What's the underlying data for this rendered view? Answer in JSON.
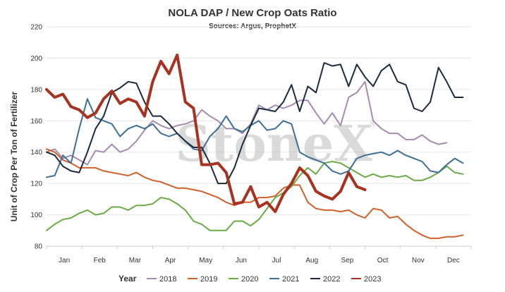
{
  "chart_data": {
    "type": "line",
    "title": "NOLA DAP / New Crop Oats Ratio",
    "subtitle": "Sources: Argus, ProphetX",
    "ylabel": "Unit of Crop Per Ton of Fertilizer",
    "xlabel": "",
    "ylim": [
      80,
      220
    ],
    "yticks": [
      80,
      100,
      120,
      140,
      160,
      180,
      200,
      220
    ],
    "xlim": [
      0,
      52
    ],
    "months": [
      "Jan",
      "Feb",
      "Mar",
      "Apr",
      "May",
      "Jun",
      "Jul",
      "Aug",
      "Sep",
      "Oct",
      "Nov",
      "Dec"
    ],
    "grid": true,
    "legend": {
      "title": "Year",
      "position": "bottom"
    },
    "watermark": "StoneX",
    "watermark_mark": "®",
    "series": [
      {
        "name": "2018",
        "color": "#a58bb0",
        "x": [
          0,
          1,
          2,
          3,
          4,
          5,
          6,
          7,
          8,
          9,
          10,
          11,
          12,
          13,
          14,
          15,
          16,
          17,
          18,
          19,
          20,
          21,
          22,
          23,
          24,
          25,
          26,
          27,
          28,
          29,
          30,
          31,
          32,
          33,
          34,
          35,
          36,
          37,
          38,
          39,
          40,
          41,
          42,
          43,
          44,
          45,
          46,
          47,
          48,
          49
        ],
        "values": [
          140,
          142,
          136,
          138,
          135,
          132,
          141,
          140,
          145,
          140,
          142,
          147,
          154,
          160,
          157,
          155,
          157,
          158,
          160,
          167,
          163,
          160,
          155,
          155,
          152,
          158,
          170,
          167,
          170,
          168,
          170,
          173,
          173,
          165,
          158,
          165,
          157,
          175,
          178,
          185,
          160,
          155,
          152,
          152,
          148,
          148,
          151,
          147,
          145,
          146
        ]
      },
      {
        "name": "2019",
        "color": "#d2602a",
        "x": [
          0,
          1,
          2,
          3,
          4,
          5,
          6,
          7,
          8,
          9,
          10,
          11,
          12,
          13,
          14,
          15,
          16,
          17,
          18,
          19,
          20,
          21,
          22,
          23,
          24,
          25,
          26,
          27,
          28,
          29,
          30,
          31,
          32,
          33,
          34,
          35,
          36,
          37,
          38,
          39,
          40,
          41,
          42,
          43,
          44,
          45,
          46,
          47,
          48,
          49,
          50,
          51
        ],
        "values": [
          142,
          140,
          135,
          133,
          130,
          130,
          130,
          128,
          127,
          126,
          125,
          127,
          124,
          122,
          121,
          119,
          117,
          117,
          116,
          115,
          113,
          111,
          108,
          106,
          108,
          108,
          111,
          111,
          112,
          117,
          119,
          119,
          108,
          104,
          103,
          103,
          102,
          103,
          100,
          98,
          104,
          103,
          98,
          99,
          94,
          90,
          87,
          85,
          85,
          86,
          86,
          87
        ]
      },
      {
        "name": "2020",
        "color": "#6aab45",
        "x": [
          0,
          1,
          2,
          3,
          4,
          5,
          6,
          7,
          8,
          9,
          10,
          11,
          12,
          13,
          14,
          15,
          16,
          17,
          18,
          19,
          20,
          21,
          22,
          23,
          24,
          25,
          26,
          27,
          28,
          29,
          30,
          31,
          32,
          33,
          34,
          35,
          36,
          37,
          38,
          39,
          40,
          41,
          42,
          43,
          44,
          45,
          46,
          47,
          48,
          49,
          50,
          51
        ],
        "values": [
          90,
          94,
          97,
          98,
          101,
          103,
          100,
          101,
          105,
          105,
          103,
          106,
          106,
          107,
          111,
          110,
          107,
          103,
          96,
          94,
          90,
          90,
          90,
          96,
          96,
          93,
          97,
          104,
          111,
          114,
          118,
          125,
          130,
          126,
          133,
          134,
          133,
          130,
          127,
          124,
          126,
          124,
          125,
          124,
          125,
          122,
          122,
          124,
          127,
          131,
          127,
          126
        ]
      },
      {
        "name": "2021",
        "color": "#3f6f94",
        "x": [
          0,
          1,
          2,
          3,
          4,
          5,
          6,
          7,
          8,
          9,
          10,
          11,
          12,
          13,
          14,
          15,
          16,
          17,
          18,
          19,
          20,
          21,
          22,
          23,
          24,
          25,
          26,
          27,
          28,
          29,
          30,
          31,
          32,
          33,
          34,
          35,
          36,
          37,
          38,
          39,
          40,
          41,
          42,
          43,
          44,
          45,
          46,
          47,
          48,
          49,
          50,
          51
        ],
        "values": [
          124,
          125,
          138,
          133,
          155,
          174,
          162,
          160,
          158,
          150,
          155,
          157,
          155,
          158,
          152,
          150,
          152,
          147,
          142,
          141,
          150,
          155,
          163,
          155,
          153,
          157,
          160,
          154,
          155,
          160,
          158,
          140,
          137,
          135,
          133,
          128,
          126,
          128,
          136,
          138,
          139,
          140,
          138,
          141,
          138,
          136,
          134,
          128,
          127,
          132,
          136,
          133
        ]
      },
      {
        "name": "2022",
        "color": "#1b2a3e",
        "x": [
          0,
          1,
          2,
          3,
          4,
          5,
          6,
          7,
          8,
          9,
          10,
          11,
          12,
          13,
          14,
          15,
          16,
          17,
          18,
          19,
          20,
          21,
          22,
          23,
          24,
          25,
          26,
          27,
          28,
          29,
          30,
          31,
          32,
          33,
          34,
          35,
          36,
          37,
          38,
          39,
          40,
          41,
          42,
          43,
          44,
          45,
          46,
          47,
          48,
          49,
          50,
          51
        ],
        "values": [
          140,
          138,
          131,
          128,
          127,
          140,
          155,
          163,
          178,
          181,
          185,
          184,
          172,
          163,
          163,
          158,
          152,
          147,
          143,
          143,
          133,
          120,
          120,
          130,
          145,
          157,
          168,
          167,
          166,
          172,
          183,
          166,
          182,
          178,
          197,
          195,
          196,
          182,
          196,
          188,
          182,
          192,
          196,
          185,
          183,
          168,
          166,
          172,
          194,
          185,
          175,
          175
        ]
      },
      {
        "name": "2023",
        "color": "#a6321f",
        "x": [
          0,
          1,
          2,
          3,
          4,
          5,
          6,
          7,
          8,
          9,
          10,
          11,
          12,
          13,
          14,
          15,
          16,
          17,
          18,
          19,
          20,
          21,
          22,
          23,
          24,
          25,
          26,
          27,
          28,
          29,
          30,
          31,
          32,
          33,
          34,
          35,
          36,
          37,
          38,
          39
        ],
        "values": [
          180,
          175,
          177,
          169,
          167,
          162,
          165,
          174,
          179,
          171,
          174,
          172,
          163,
          185,
          198,
          190,
          202,
          172,
          168,
          132,
          132,
          133,
          127,
          107,
          108,
          118,
          105,
          108,
          102,
          113,
          120,
          130,
          125,
          115,
          112,
          110,
          115,
          127,
          118,
          116
        ]
      }
    ]
  }
}
